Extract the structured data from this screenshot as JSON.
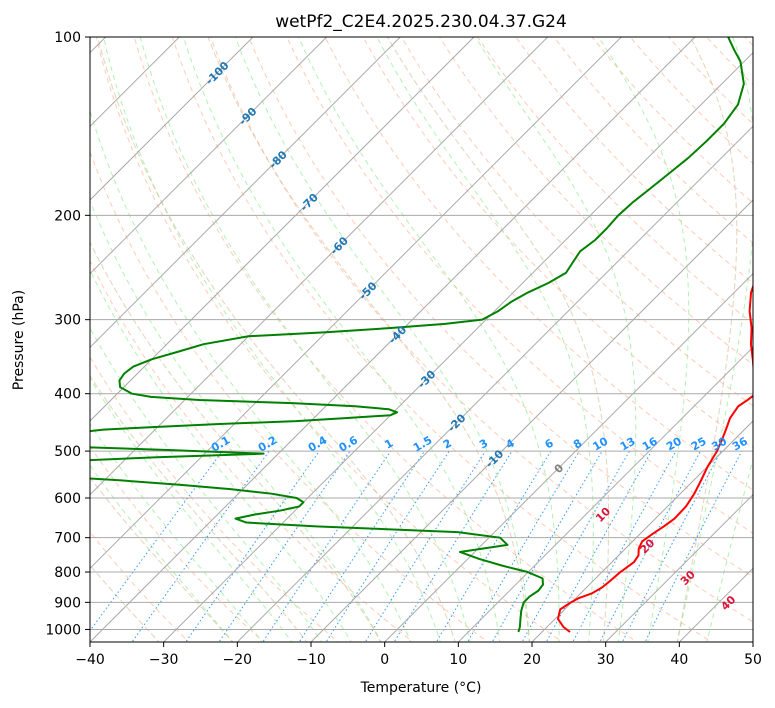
{
  "chart_data": {
    "type": "line",
    "title": "wetPf2_C2E4.2025.230.04.37.G24",
    "xlabel": "Temperature (°C)",
    "ylabel": "Pressure (hPa)",
    "xlim": [
      -40,
      50
    ],
    "ylim": [
      1050,
      100
    ],
    "y_scale": "log",
    "skew": true,
    "grid": true,
    "x_ticks": [
      -40,
      -30,
      -20,
      -10,
      0,
      10,
      20,
      30,
      40,
      50
    ],
    "y_ticks": [
      100,
      200,
      300,
      400,
      500,
      600,
      700,
      800,
      900,
      1000
    ],
    "series": [
      {
        "color": "#ff0000",
        "p": [
          1010,
          990,
          960,
          925,
          900,
          885,
          870,
          850,
          830,
          800,
          770,
          750,
          730,
          710,
          690,
          670,
          650,
          620,
          590,
          560,
          530,
          500,
          480,
          460,
          440,
          420,
          410,
          400,
          390,
          370,
          350,
          330,
          310,
          290,
          270,
          250,
          230,
          210,
          190,
          170,
          150,
          140,
          130,
          120,
          115,
          110,
          105,
          100
        ],
        "t": [
          23.8,
          22.2,
          20.4,
          19.4,
          19.9,
          20.4,
          21.5,
          22.1,
          22.3,
          22.5,
          23.0,
          22.7,
          21.8,
          21.3,
          21.7,
          22.2,
          22.6,
          22.5,
          21.9,
          21.0,
          20.0,
          19.2,
          18.4,
          17.5,
          16.5,
          16.0,
          16.4,
          16.7,
          15.7,
          13.7,
          11.6,
          9.3,
          7.2,
          4.6,
          2.3,
          0.5,
          -0.8,
          -2.8,
          -4.8,
          -7.2,
          -10.6,
          -12.4,
          -12.8,
          -12.0,
          -11.2,
          -9.7,
          -8.2,
          -6.8
        ]
      },
      {
        "color": "#008000",
        "p": [
          1010,
          990,
          960,
          930,
          900,
          880,
          860,
          840,
          820,
          800,
          780,
          760,
          740,
          720,
          700,
          685,
          670,
          660,
          650,
          640,
          630,
          620,
          610,
          600,
          590,
          580,
          570,
          560,
          550,
          540,
          530,
          520,
          512,
          505,
          498,
          492,
          485,
          480,
          475,
          470,
          465,
          460,
          455,
          450,
          445,
          440,
          435,
          430,
          425,
          420,
          415,
          410,
          405,
          400,
          390,
          380,
          370,
          360,
          350,
          340,
          330,
          320,
          315,
          310,
          305,
          300,
          290,
          280,
          270,
          260,
          250,
          240,
          230,
          220,
          210,
          200,
          190,
          180,
          170,
          160,
          150,
          140,
          130,
          120,
          110,
          105,
          100
        ],
        "t": [
          16.8,
          16.3,
          15.3,
          14.3,
          13.5,
          13.5,
          13.9,
          13.7,
          12.8,
          9.9,
          5.5,
          1.5,
          -2.0,
          3.5,
          1.5,
          -5.0,
          -25.0,
          -35.0,
          -37.0,
          -35.0,
          -32.0,
          -30.0,
          -30.0,
          -31.5,
          -35.5,
          -41.5,
          -49.0,
          -58.0,
          -69.0,
          -72.0,
          -71.0,
          -68.0,
          -56.0,
          -42.0,
          -55.0,
          -68.0,
          -70.0,
          -72.0,
          -75.0,
          -72.0,
          -70.0,
          -67.0,
          -60.0,
          -52.0,
          -42.0,
          -36.0,
          -30.0,
          -29.5,
          -31.0,
          -36.0,
          -45.0,
          -58.0,
          -65.0,
          -68.0,
          -70.5,
          -71.5,
          -71.8,
          -71.5,
          -70.0,
          -67.5,
          -65.0,
          -60.0,
          -50.0,
          -42.0,
          -35.0,
          -30.5,
          -29.5,
          -29.0,
          -28.0,
          -26.5,
          -25.5,
          -26.0,
          -26.5,
          -26.0,
          -26.0,
          -26.2,
          -26.0,
          -25.5,
          -25.0,
          -24.5,
          -24.3,
          -24.3,
          -25.0,
          -27.0,
          -30.5,
          -33.0,
          -35.5
        ]
      }
    ],
    "isotherm_labels": [
      "-100",
      "-90",
      "-80",
      "-70",
      "-60",
      "-50",
      "-40",
      "-30",
      "-20",
      "-10"
    ],
    "mixing_ratio_labels": [
      "0.1",
      "0.2",
      "0.4",
      "0.6",
      "1",
      "1.5",
      "2",
      "3",
      "4",
      "6",
      "8",
      "10",
      "13",
      "16",
      "20",
      "25",
      "30",
      "36"
    ],
    "dry_adiabat_labels": [
      "0",
      "10",
      "20",
      "30",
      "40"
    ],
    "colors": {
      "isotherm": "#a9a9a9",
      "isotherm_label": "#1f77b4",
      "isobar": "#a9a9a9",
      "dry_adiabat": "#ffa07a",
      "moist_adiabat": "#90ee90",
      "mixing_ratio": "#1e90ff",
      "mixing_label": "#1e90ff",
      "dry_label": "#dc143c",
      "theta_e": "#d2b48c"
    }
  }
}
